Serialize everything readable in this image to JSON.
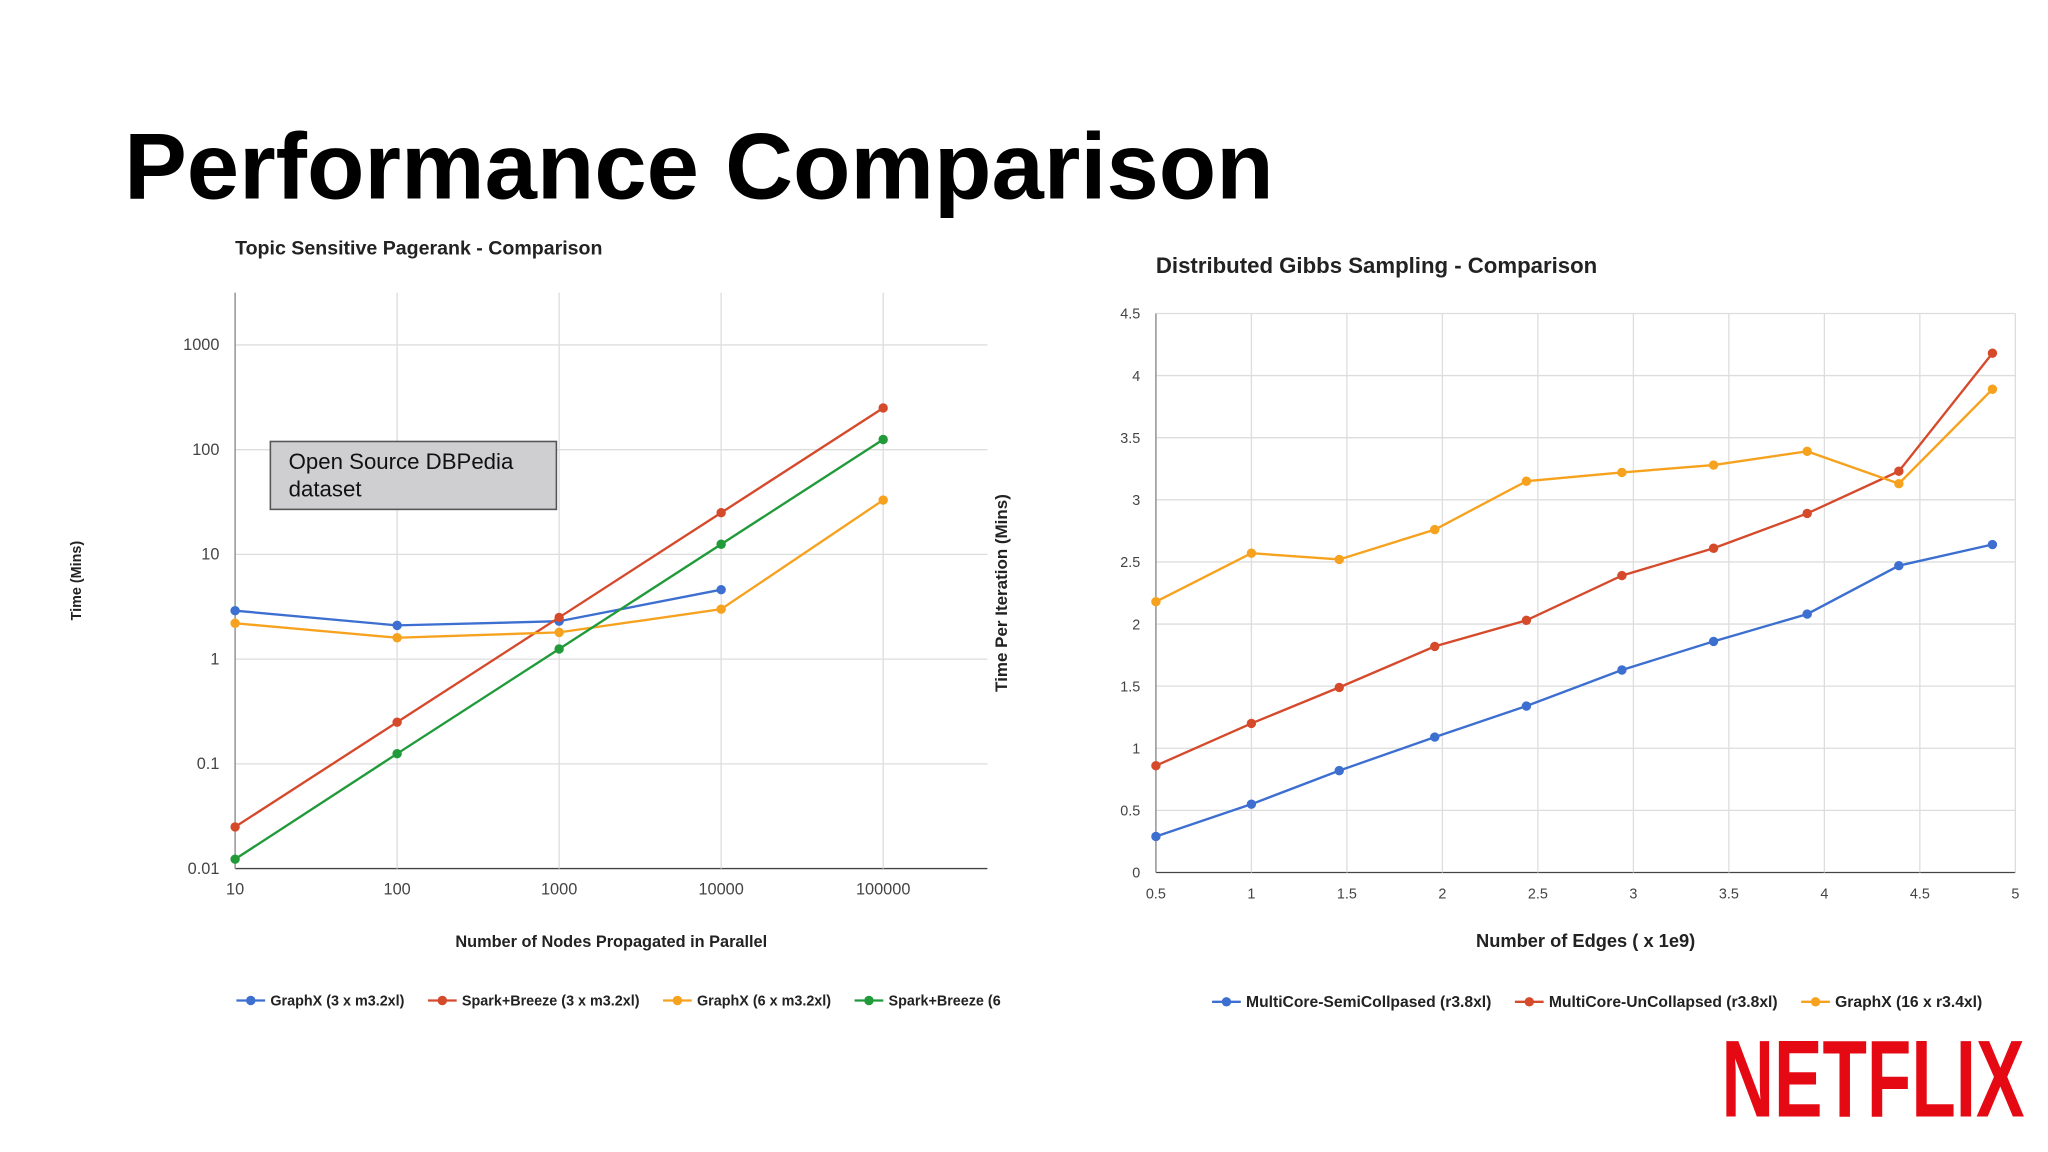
{
  "title": "Performance Comparison",
  "logo": "NETFLIX",
  "chart_data": [
    {
      "type": "line",
      "title": "Topic Sensitive Pagerank - Comparison",
      "x_label": "Number of Nodes Propagated in Parallel",
      "y_label": "Time (Mins)",
      "log_x": true,
      "log_y": true,
      "grid": true,
      "legend": "bottom",
      "xlim": [
        10,
        440000
      ],
      "ylim": [
        0.01,
        3162
      ],
      "xticks": [
        10,
        100,
        1000,
        10000,
        100000
      ],
      "yticks": [
        0.01,
        0.1,
        1,
        10,
        100,
        1000
      ],
      "annotations": [
        "Open Source DBPedia dataset"
      ],
      "x": [
        10,
        100,
        1000,
        10000,
        100000
      ],
      "series": [
        {
          "name": "GraphX (3 x m3.2xl)",
          "color": "#3c6fd0",
          "values": [
            2.9,
            2.1,
            2.3,
            4.6,
            null
          ]
        },
        {
          "name": "Spark+Breeze (3 x m3.2xl)",
          "color": "#d64a2c",
          "values": [
            0.025,
            0.25,
            2.5,
            25,
            250
          ]
        },
        {
          "name": "GraphX (6 x m3.2xl)",
          "color": "#f6a21e",
          "values": [
            2.2,
            1.6,
            1.8,
            3.0,
            33
          ]
        },
        {
          "name": "Spark+Breeze (6",
          "color": "#219a3a",
          "values": [
            0.0123,
            0.125,
            1.25,
            12.5,
            125
          ]
        }
      ]
    },
    {
      "type": "line",
      "title": "Distributed Gibbs Sampling - Comparison",
      "x_label": "Number of Edges ( x 1e9)",
      "y_label": "Time Per Iteration (Mins)",
      "log_x": false,
      "log_y": false,
      "grid": true,
      "legend": "bottom",
      "xlim": [
        0.5,
        5
      ],
      "ylim": [
        0,
        4.5
      ],
      "xticks": [
        0.5,
        1,
        1.5,
        2,
        2.5,
        3,
        3.5,
        4,
        4.5,
        5
      ],
      "yticks": [
        0,
        0.5,
        1,
        1.5,
        2,
        2.5,
        3,
        3.5,
        4,
        4.5
      ],
      "x": [
        0.5,
        1.0,
        1.46,
        1.96,
        2.44,
        2.94,
        3.42,
        3.91,
        4.39,
        4.88
      ],
      "series": [
        {
          "name": "MultiCore-SemiCollpased (r3.8xl)",
          "color": "#3c6fd0",
          "values": [
            0.29,
            0.55,
            0.82,
            1.09,
            1.34,
            1.63,
            1.86,
            2.08,
            2.47,
            2.64
          ]
        },
        {
          "name": "MultiCore-UnCollapsed (r3.8xl)",
          "color": "#d64a2c",
          "values": [
            0.86,
            1.2,
            1.49,
            1.82,
            2.03,
            2.39,
            2.61,
            2.89,
            3.23,
            4.18
          ]
        },
        {
          "name": "GraphX (16 x r3.4xl)",
          "color": "#f6a21e",
          "values": [
            2.18,
            2.57,
            2.52,
            2.76,
            3.15,
            3.22,
            3.28,
            3.39,
            3.13,
            3.89
          ]
        }
      ]
    }
  ]
}
